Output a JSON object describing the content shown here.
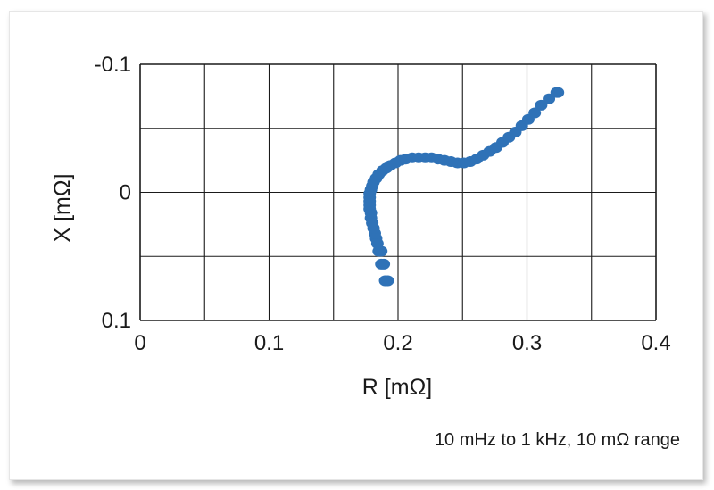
{
  "chart_data": {
    "type": "scatter",
    "title": "",
    "xlabel": "R [mΩ]",
    "ylabel": "X [mΩ]",
    "xlim": [
      0,
      0.4
    ],
    "ylim": [
      0.1,
      -0.1
    ],
    "y_axis_inverted": true,
    "x_ticks": [
      "0",
      "0.1",
      "0.2",
      "0.3",
      "0.4"
    ],
    "y_ticks": [
      "-0.1",
      "0",
      "0.1"
    ],
    "grid": true,
    "legend": "none",
    "annotation": "10 mHz to 1 kHz, 10 mΩ range",
    "series": [
      {
        "color": "#2f72b7",
        "points": [
          [
            0.192,
            0.069
          ],
          [
            0.19,
            0.069
          ],
          [
            0.189,
            0.056
          ],
          [
            0.187,
            0.056
          ],
          [
            0.187,
            0.046
          ],
          [
            0.185,
            0.046
          ],
          [
            0.184,
            0.04
          ],
          [
            0.183,
            0.036
          ],
          [
            0.182,
            0.032
          ],
          [
            0.181,
            0.028
          ],
          [
            0.18,
            0.024
          ],
          [
            0.179,
            0.02
          ],
          [
            0.179,
            0.016
          ],
          [
            0.178,
            0.013
          ],
          [
            0.178,
            0.01
          ],
          [
            0.178,
            0.007
          ],
          [
            0.178,
            0.004
          ],
          [
            0.178,
            0.001
          ],
          [
            0.179,
            -0.002
          ],
          [
            0.18,
            -0.005
          ],
          [
            0.181,
            -0.008
          ],
          [
            0.183,
            -0.011
          ],
          [
            0.185,
            -0.014
          ],
          [
            0.188,
            -0.017
          ],
          [
            0.191,
            -0.019
          ],
          [
            0.194,
            -0.021
          ],
          [
            0.198,
            -0.023
          ],
          [
            0.202,
            -0.025
          ],
          [
            0.206,
            -0.026
          ],
          [
            0.211,
            -0.027
          ],
          [
            0.216,
            -0.027
          ],
          [
            0.221,
            -0.027
          ],
          [
            0.226,
            -0.027
          ],
          [
            0.231,
            -0.026
          ],
          [
            0.236,
            -0.025
          ],
          [
            0.241,
            -0.024
          ],
          [
            0.246,
            -0.023
          ],
          [
            0.251,
            -0.023
          ],
          [
            0.256,
            -0.024
          ],
          [
            0.261,
            -0.026
          ],
          [
            0.266,
            -0.029
          ],
          [
            0.271,
            -0.032
          ],
          [
            0.276,
            -0.035
          ],
          [
            0.281,
            -0.039
          ],
          [
            0.286,
            -0.043
          ],
          [
            0.291,
            -0.047
          ],
          [
            0.296,
            -0.052
          ],
          [
            0.301,
            -0.057
          ],
          [
            0.306,
            -0.062
          ],
          [
            0.311,
            -0.068
          ],
          [
            0.317,
            -0.073
          ],
          [
            0.323,
            -0.078
          ],
          [
            0.324,
            -0.078
          ]
        ]
      }
    ]
  }
}
